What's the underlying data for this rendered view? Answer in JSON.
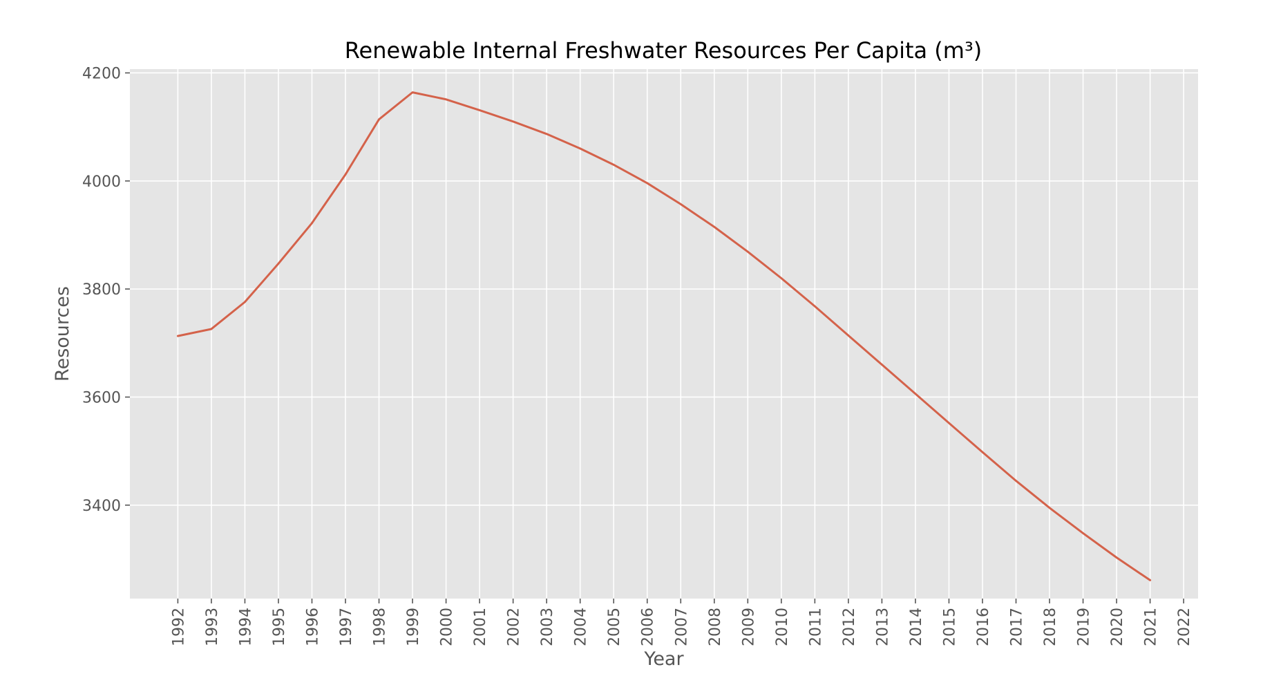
{
  "chart_data": {
    "type": "line",
    "title": "Renewable Internal Freshwater Resources Per Capita (m³)",
    "xlabel": "Year",
    "ylabel": "Resources",
    "x": [
      1992,
      1993,
      1994,
      1995,
      1996,
      1997,
      1998,
      1999,
      2000,
      2001,
      2002,
      2003,
      2004,
      2005,
      2006,
      2007,
      2008,
      2009,
      2010,
      2011,
      2012,
      2013,
      2014,
      2015,
      2016,
      2017,
      2018,
      2019,
      2020,
      2021
    ],
    "series": [
      {
        "values": [
          3713,
          3726,
          3776,
          3847,
          3922,
          4012,
          4114,
          4164,
          4151,
          4131,
          4110,
          4087,
          4060,
          4030,
          3996,
          3957,
          3915,
          3869,
          3820,
          3768,
          3714,
          3660,
          3606,
          3552,
          3498,
          3445,
          3395,
          3348,
          3303,
          3261
        ],
        "color": "#d4624a"
      }
    ],
    "x_ticks": [
      "1992",
      "1993",
      "1994",
      "1995",
      "1996",
      "1997",
      "1998",
      "1999",
      "2000",
      "2001",
      "2002",
      "2003",
      "2004",
      "2005",
      "2006",
      "2007",
      "2008",
      "2009",
      "2010",
      "2011",
      "2012",
      "2013",
      "2014",
      "2015",
      "2016",
      "2017",
      "2018",
      "2019",
      "2020",
      "2021",
      "2022"
    ],
    "y_ticks": [
      "3400",
      "3600",
      "3800",
      "4000",
      "4200"
    ],
    "xlim": [
      1990.57,
      2022.43
    ],
    "ylim": [
      3227,
      4207
    ],
    "grid": true,
    "legend": "none",
    "background_color": "#e5e5e5",
    "grid_color": "#ffffff"
  }
}
